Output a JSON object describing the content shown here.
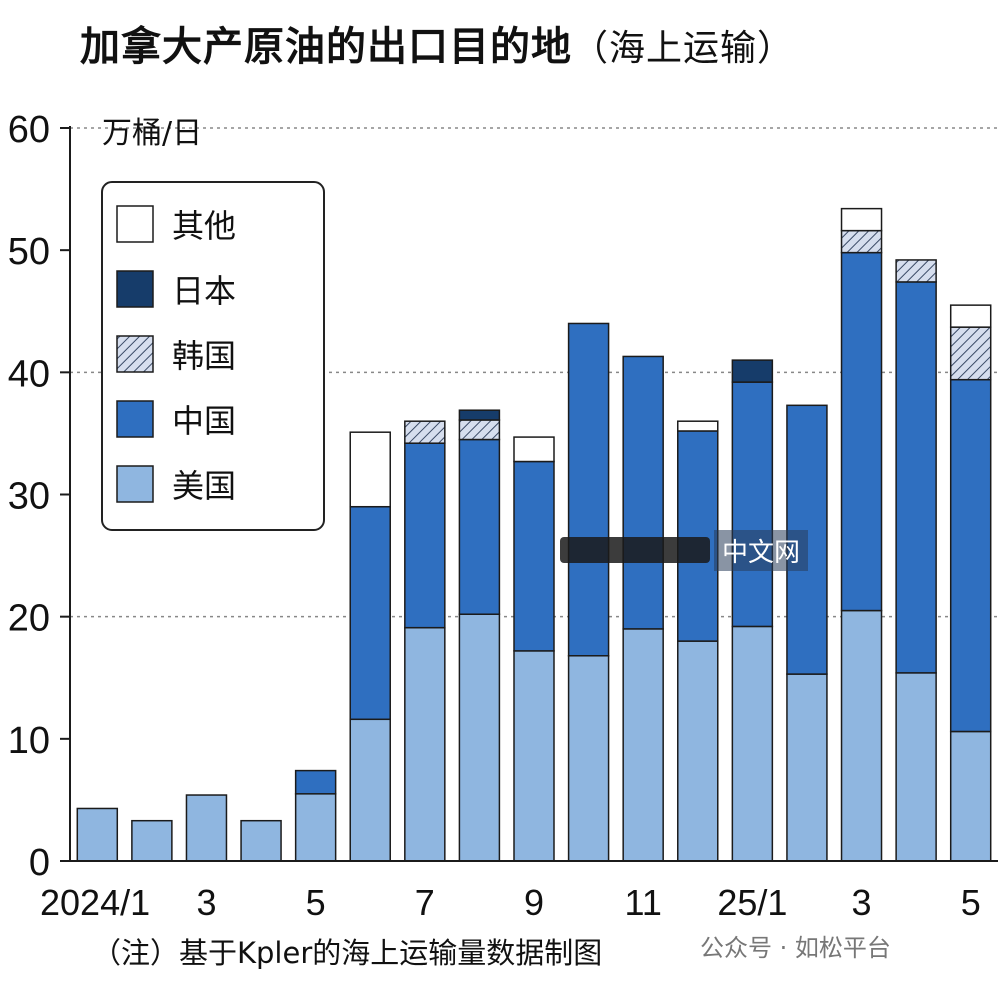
{
  "title": "加拿大产原油的出口目的地",
  "subtitle": "（海上运输）",
  "note": "（注）基于Kpler的海上运输量数据制图",
  "watermark_bottom": "公众号 · 如松平台",
  "watermark_mid": "中文网",
  "chart_data": {
    "type": "bar",
    "stacked": true,
    "y_unit_label": "万桶/日",
    "ylim": [
      0,
      60
    ],
    "yticks": [
      0,
      10,
      20,
      30,
      40,
      50,
      60
    ],
    "grid": "dashed horizontal at 20, 40, 60",
    "legend_position": "top-left",
    "categories": [
      "2024/1",
      "2",
      "3",
      "4",
      "5",
      "6",
      "7",
      "8",
      "9",
      "10",
      "11",
      "12",
      "25/1",
      "2",
      "3",
      "4",
      "5"
    ],
    "x_tick_labels": [
      "2024/1",
      "",
      "3",
      "",
      "5",
      "",
      "7",
      "",
      "9",
      "",
      "11",
      "",
      "25/1",
      "",
      "3",
      "",
      "5"
    ],
    "series": [
      {
        "name": "美国",
        "color": "#8fb6e0",
        "values": [
          4.3,
          3.3,
          5.4,
          3.3,
          5.5,
          11.6,
          19.1,
          20.2,
          17.2,
          16.8,
          19.0,
          18.0,
          19.2,
          15.3,
          20.5,
          15.4,
          10.6
        ]
      },
      {
        "name": "中国",
        "color": "#2f6fc0",
        "values": [
          0,
          0,
          0,
          0,
          1.9,
          17.4,
          15.1,
          14.3,
          15.5,
          27.2,
          22.3,
          17.2,
          20.0,
          22.0,
          29.3,
          32.0,
          28.8
        ]
      },
      {
        "name": "韩国",
        "color": "#c8d4ea",
        "hatched": true,
        "values": [
          0,
          0,
          0,
          0,
          0,
          0,
          1.8,
          1.6,
          0,
          0,
          0,
          0,
          0,
          0,
          1.8,
          1.8,
          4.3
        ]
      },
      {
        "name": "日本",
        "color": "#163c6a",
        "values": [
          0,
          0,
          0,
          0,
          0,
          0,
          0,
          0.8,
          0,
          0,
          0,
          0,
          1.8,
          0,
          0,
          0,
          0
        ]
      },
      {
        "name": "其他",
        "color": "#ffffff",
        "values": [
          0,
          0,
          0,
          0,
          0,
          6.1,
          0,
          0,
          2.0,
          0,
          0,
          0.8,
          0,
          0,
          1.8,
          0,
          1.8
        ]
      }
    ],
    "legend_order": [
      "其他",
      "日本",
      "韩国",
      "中国",
      "美国"
    ]
  }
}
